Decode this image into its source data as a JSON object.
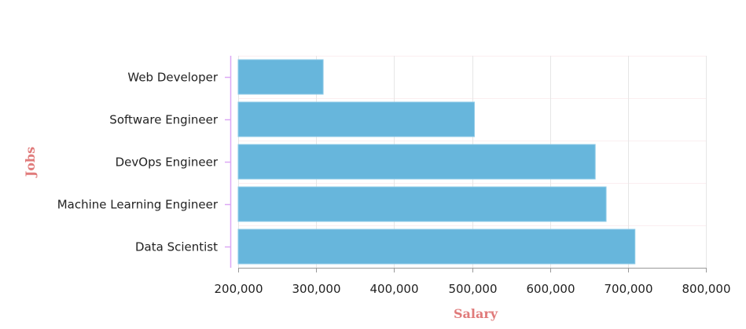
{
  "chart_data": {
    "type": "bar",
    "orientation": "horizontal",
    "title": "",
    "xlabel": "Salary",
    "ylabel": "Jobs",
    "categories": [
      "Web Developer",
      "Software Engineer",
      "DevOps Engineer",
      "Machine Learning Engineer",
      "Data Scientist"
    ],
    "values": [
      309000,
      503000,
      658000,
      672000,
      709000
    ],
    "xlim": [
      200000,
      800000
    ],
    "x_ticks": [
      "200,000",
      "300,000",
      "400,000",
      "500,000",
      "600,000",
      "700,000",
      "800,000"
    ],
    "grid": true,
    "legend": null,
    "colors": {
      "bar": "#67b6dc",
      "bar_border": "#8fcbe7",
      "axis_title": "#e07b7b",
      "y_axis_line": "#dda8f5",
      "x_axis_line": "#999999",
      "grid_vertical": "#e6e6e6",
      "grid_horizontal": "#fbeef0"
    }
  }
}
